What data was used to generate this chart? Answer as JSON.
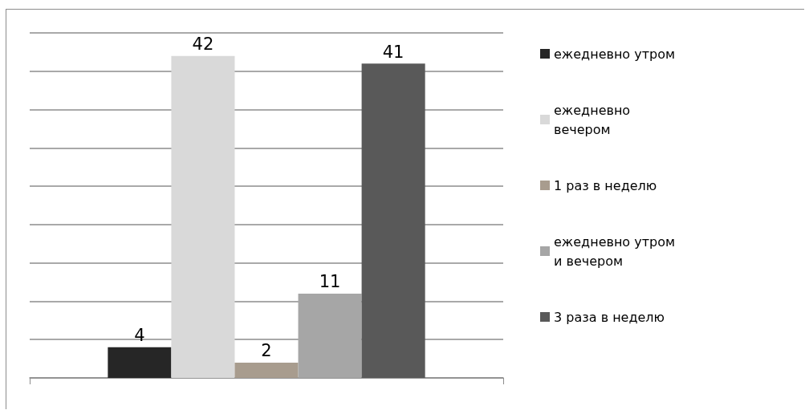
{
  "chart_data": {
    "type": "bar",
    "categories": [
      null
    ],
    "series": [
      {
        "name": "ежедневно утром",
        "color": "#262626",
        "values": [
          4
        ]
      },
      {
        "name": "ежедневно вечером",
        "color": "#d9d9d9",
        "values": [
          42
        ]
      },
      {
        "name": "1 раз в неделю",
        "color": "#a89c8e",
        "values": [
          2
        ]
      },
      {
        "name": "ежедневно утром и вечером",
        "color": "#a6a6a6",
        "values": [
          11
        ]
      },
      {
        "name": "3 раза в неделю",
        "color": "#595959",
        "values": [
          41
        ]
      }
    ],
    "ylim": [
      0,
      45
    ],
    "yticks": [
      0,
      5,
      10,
      15,
      20,
      25,
      30,
      35,
      40,
      45
    ],
    "grid": "y",
    "legend": "right",
    "data_labels": true,
    "tick_labels": false
  }
}
